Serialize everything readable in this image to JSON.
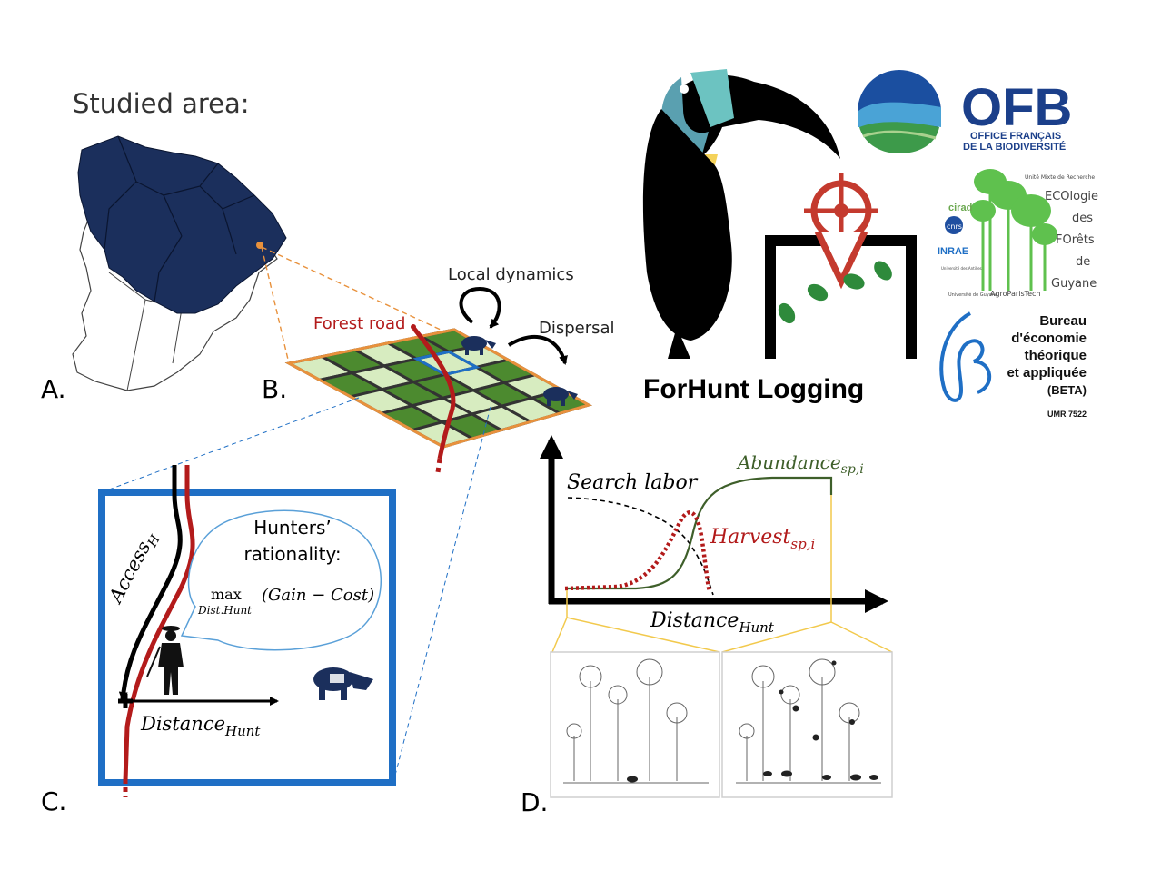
{
  "colors": {
    "map_fill": "#1b2f5c",
    "orange": "#e8913c",
    "road_red": "#b31b1b",
    "blue_frame": "#1f6fc5",
    "abundance_green": "#3e5f2a",
    "harvest_red": "#b21a1a",
    "callout_yellow": "#f2c94c",
    "grid_dark": "#4c8a2f",
    "grid_light": "#d7ecc0"
  },
  "panel_a": {
    "title": "Studied area:",
    "letter": "A."
  },
  "panel_b": {
    "letter": "B.",
    "forest_road": "Forest road",
    "local_dynamics": "Local dynamics",
    "dispersal": "Dispersal"
  },
  "panel_c": {
    "letter": "C.",
    "access": "Access",
    "access_sub": "H",
    "bubble_line1": "Hunters’",
    "bubble_line2": "rationality:",
    "max": "max",
    "max_sub": "Dist.Hunt",
    "gain_cost": "(Gain − Cost)",
    "distance": "Distance",
    "distance_sub": "Hunt"
  },
  "panel_d": {
    "letter": "D.",
    "search_labor": "Search labor",
    "abundance": "Abundance",
    "abundance_sub": "sp,i",
    "harvest": "Harvest",
    "harvest_sub": "sp,i",
    "distance": "Distance",
    "distance_sub": "Hunt"
  },
  "logos": {
    "forhunt": "ForHunt Logging",
    "ofb_big": "OFB",
    "ofb_line1": "OFFICE FRANÇAIS",
    "ofb_line2": "DE LA BIODIVERSITÉ",
    "ecofog_header": "Unité Mixte de Recherche",
    "ecofog_1": "ECOlogie",
    "ecofog_2": "des",
    "ecofog_3": "FOrêts",
    "ecofog_4": "de",
    "ecofog_5": "Guyane",
    "partner_cirad": "cirad",
    "partner_cnrs": "cnrs",
    "partner_inrae": "INRAE",
    "partner_antilles": "Université des Antilles",
    "partner_guyane": "Université de Guyane",
    "partner_agro": "AgroParisTech",
    "beta_1": "Bureau",
    "beta_2": "d'économie",
    "beta_3": "théorique",
    "beta_4": "et appliquée",
    "beta_5": "(BETA)",
    "beta_6": "UMR 7522"
  }
}
